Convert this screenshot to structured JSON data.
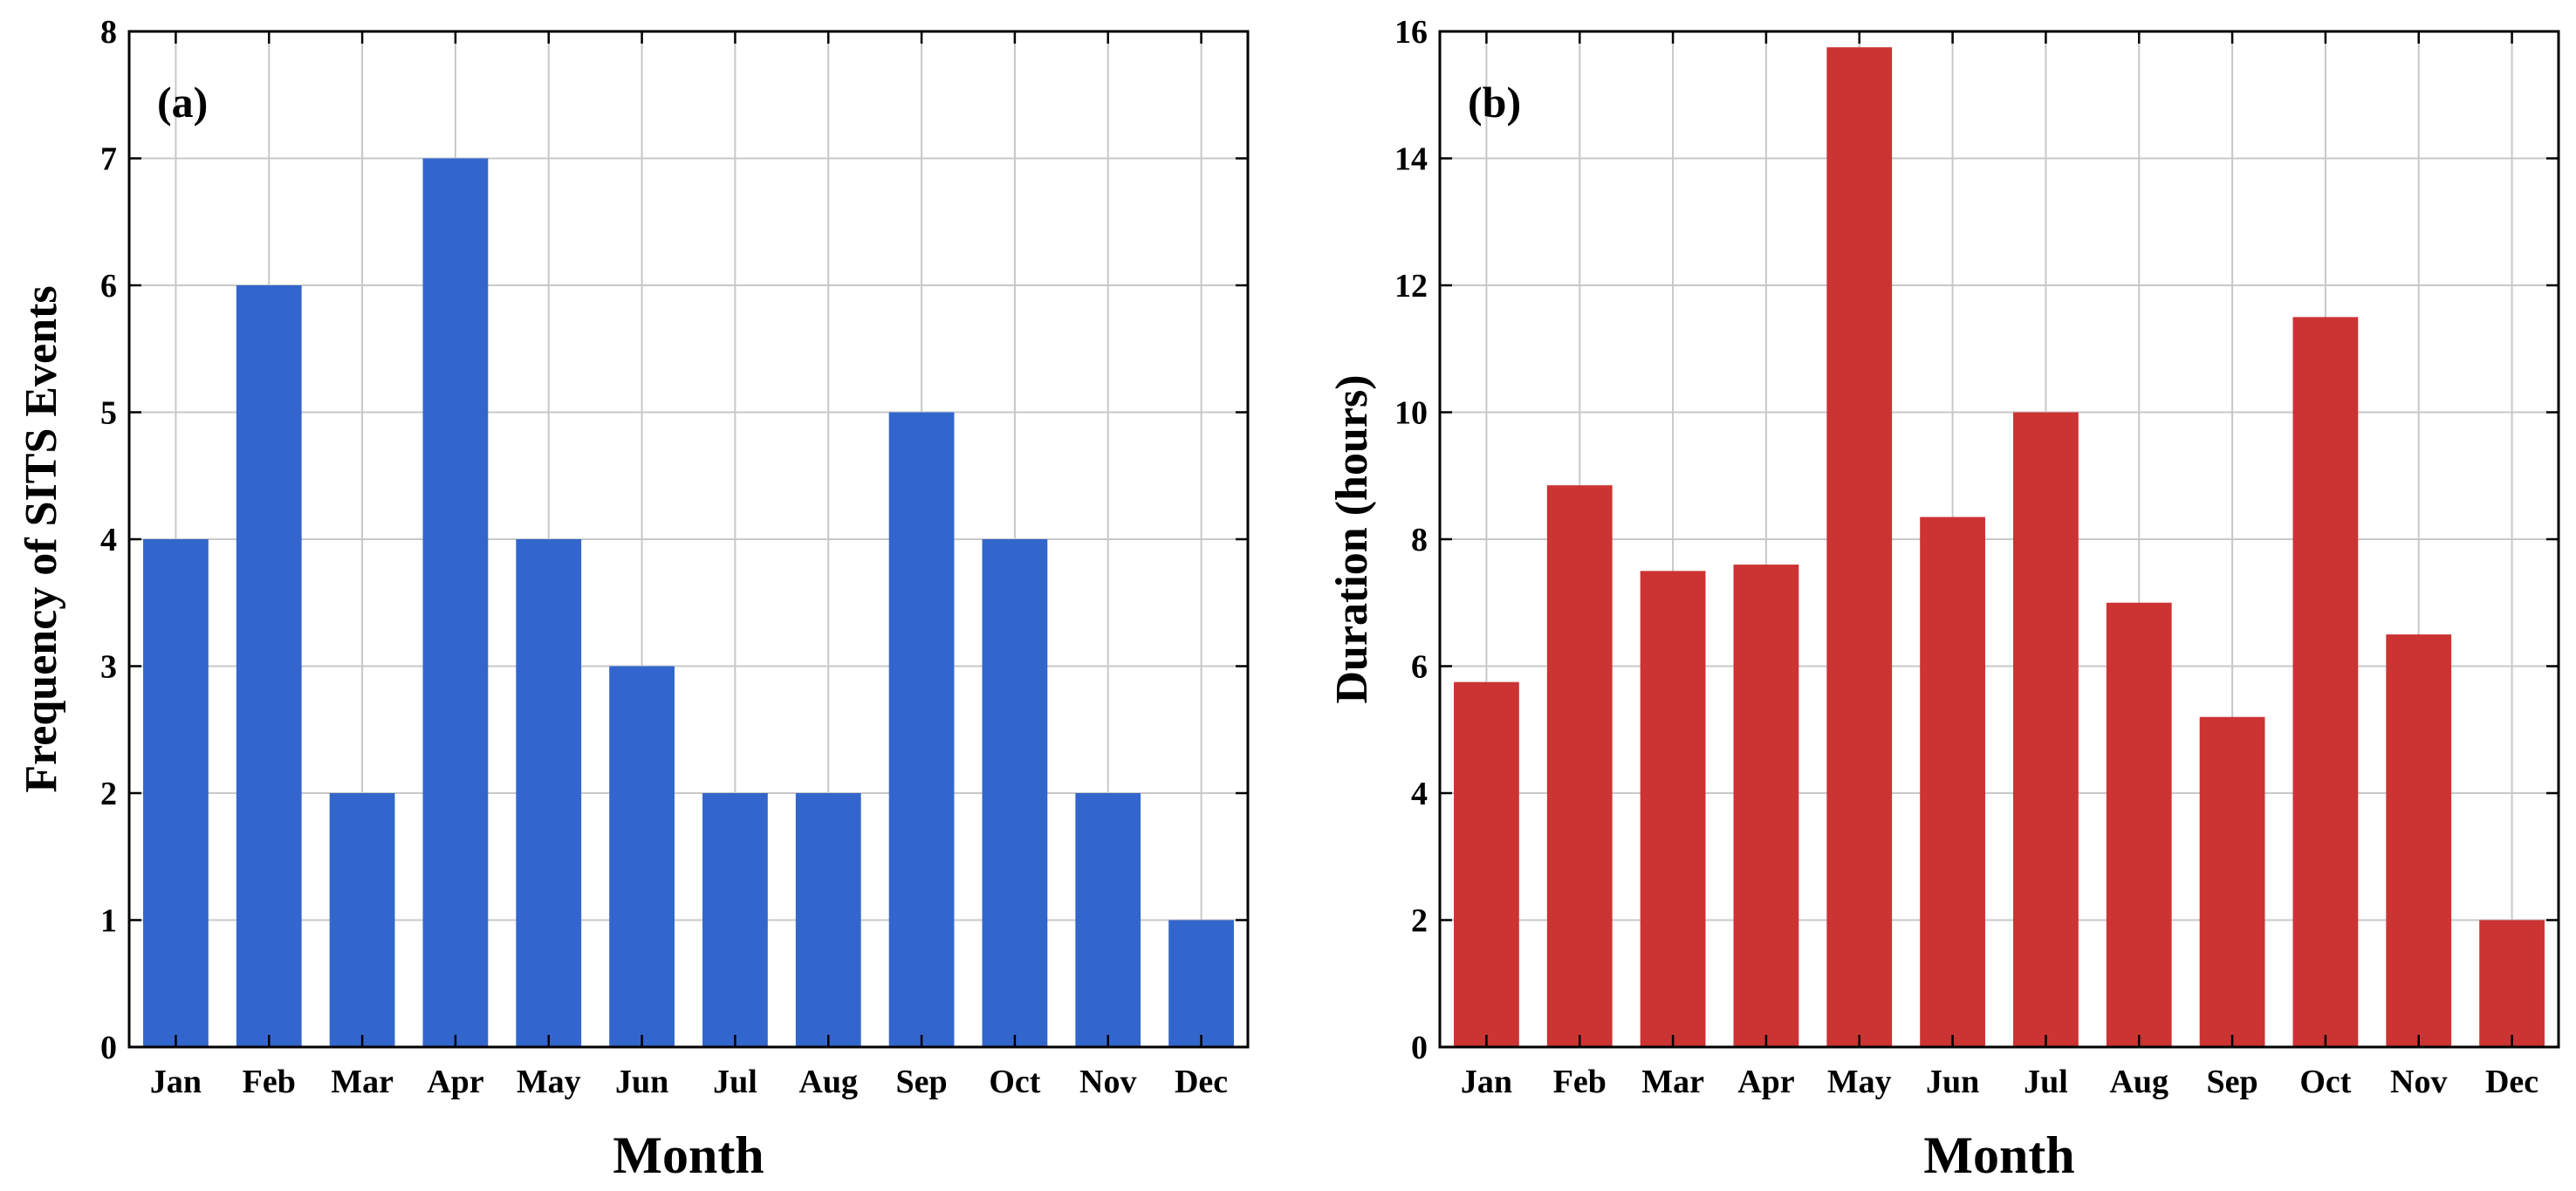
{
  "chart_data": [
    {
      "type": "bar",
      "panel_label": "(a)",
      "categories": [
        "Jan",
        "Feb",
        "Mar",
        "Apr",
        "May",
        "Jun",
        "Jul",
        "Aug",
        "Sep",
        "Oct",
        "Nov",
        "Dec"
      ],
      "values": [
        4,
        6,
        2,
        7,
        4,
        3,
        2,
        2,
        5,
        4,
        2,
        1
      ],
      "xlabel": "Month",
      "ylabel": "Frequency of SITS Events",
      "ylim": [
        0,
        8
      ],
      "yticks": [
        0,
        1,
        2,
        3,
        4,
        5,
        6,
        7,
        8
      ],
      "grid": true,
      "color": "#3366CC"
    },
    {
      "type": "bar",
      "panel_label": "(b)",
      "categories": [
        "Jan",
        "Feb",
        "Mar",
        "Apr",
        "May",
        "Jun",
        "Jul",
        "Aug",
        "Sep",
        "Oct",
        "Nov",
        "Dec"
      ],
      "values": [
        5.75,
        8.85,
        7.5,
        7.6,
        15.75,
        8.35,
        10.0,
        7.0,
        5.2,
        11.5,
        6.5,
        2.0
      ],
      "xlabel": "Month",
      "ylabel": "Duration (hours)",
      "ylim": [
        0,
        16
      ],
      "yticks": [
        0,
        2,
        4,
        6,
        8,
        10,
        12,
        14,
        16
      ],
      "grid": true,
      "color": "#CC3333"
    }
  ]
}
